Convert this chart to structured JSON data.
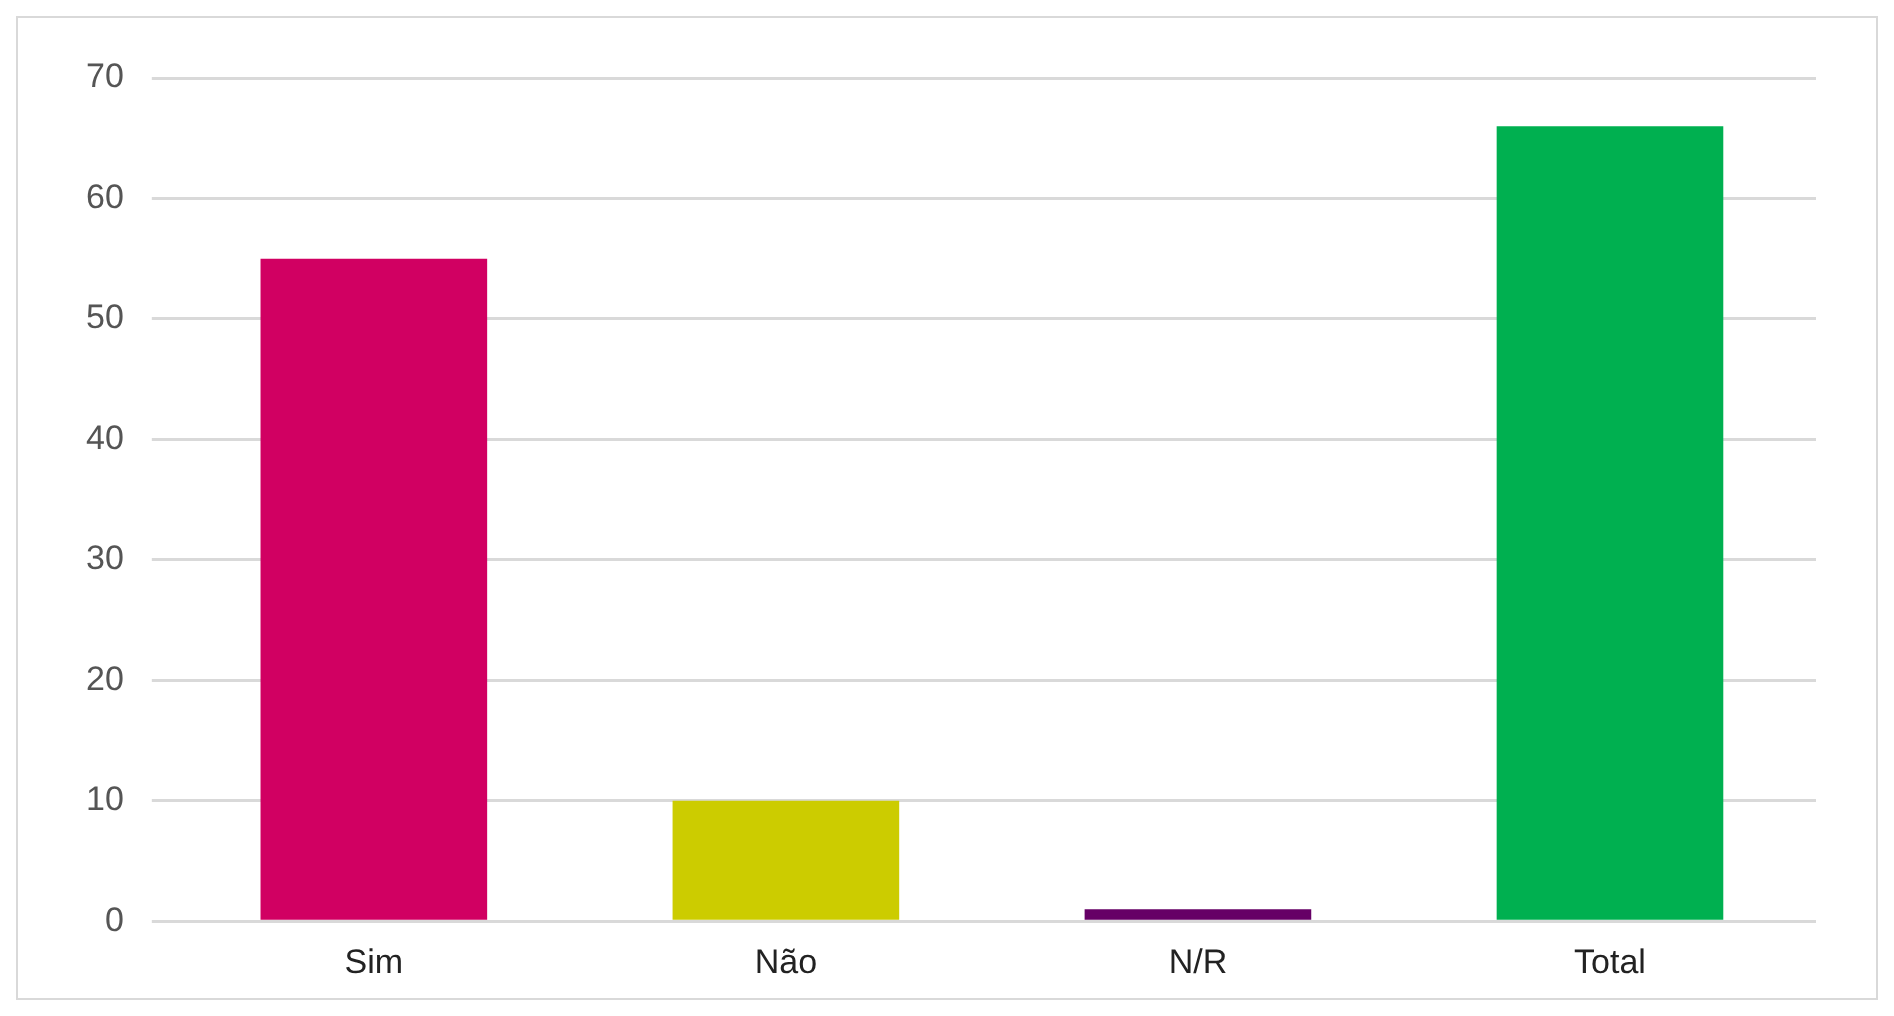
{
  "chart_data": {
    "type": "bar",
    "categories": [
      "Sim",
      "Não",
      "N/R",
      "Total"
    ],
    "values": [
      55,
      10,
      1,
      66
    ],
    "colors": [
      "#d10062",
      "#cccc00",
      "#660066",
      "#00b050"
    ],
    "ylim": [
      0,
      70
    ],
    "yticks": [
      0,
      10,
      20,
      30,
      40,
      50,
      60,
      70
    ],
    "grid": "y"
  }
}
